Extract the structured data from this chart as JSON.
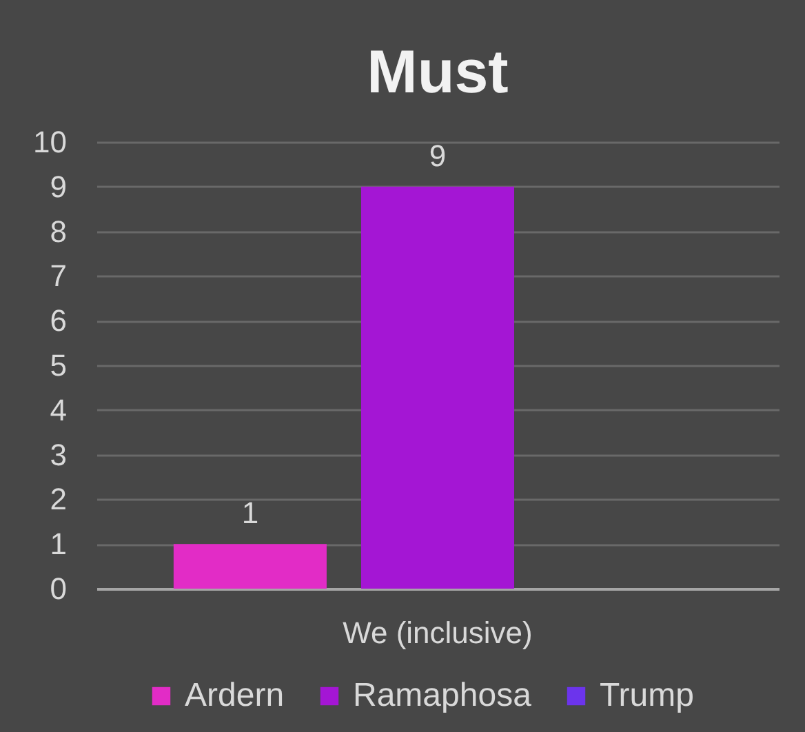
{
  "chart_data": {
    "type": "bar",
    "title": "Must",
    "categories": [
      "We (inclusive)"
    ],
    "series": [
      {
        "name": "Ardern",
        "color": "#e22cc6",
        "values": [
          1
        ]
      },
      {
        "name": "Ramaphosa",
        "color": "#a416d4",
        "values": [
          9
        ]
      },
      {
        "name": "Trump",
        "color": "#6c34ec",
        "values": [
          null
        ]
      }
    ],
    "ylim": [
      0,
      10
    ],
    "yticks": [
      0,
      1,
      2,
      3,
      4,
      5,
      6,
      7,
      8,
      9,
      10
    ],
    "grid": "y",
    "legend": "bottom",
    "data_labels": true
  }
}
